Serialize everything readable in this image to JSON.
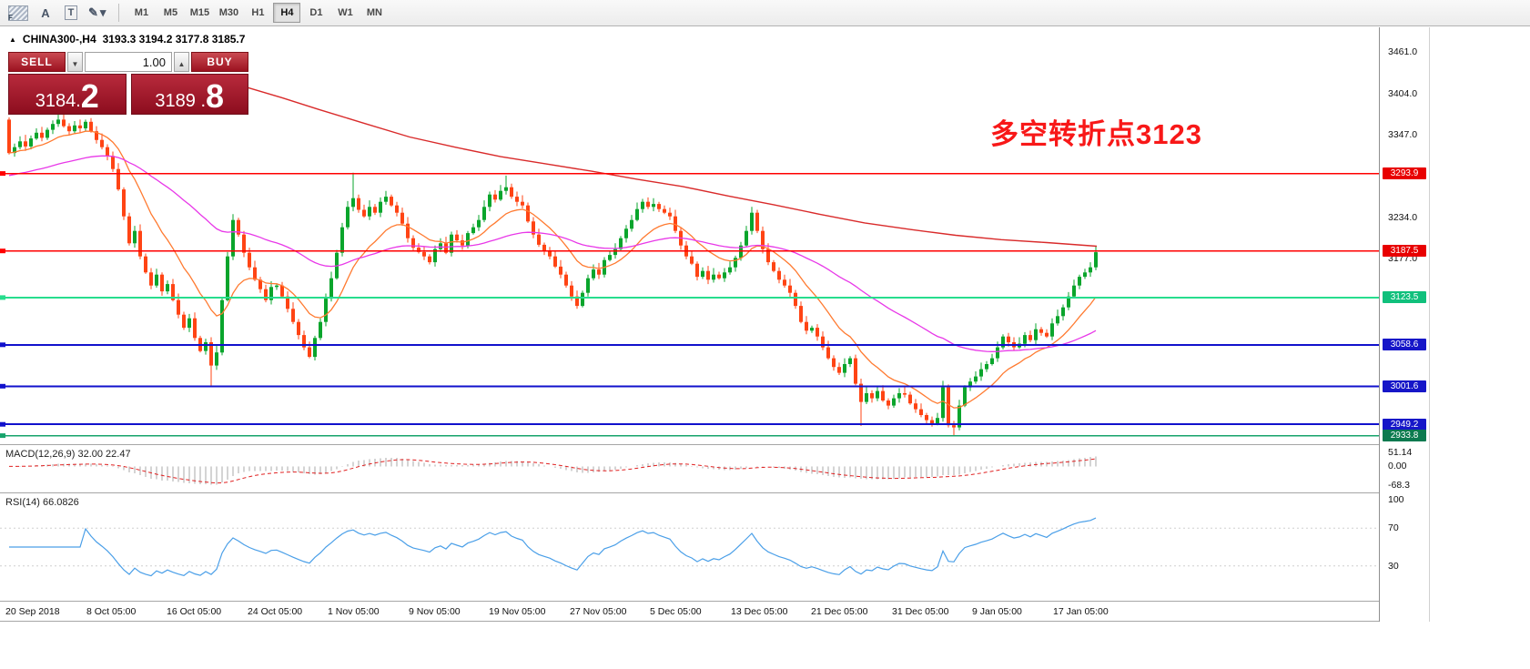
{
  "toolbar": {
    "icons": {
      "pattern_label": "F",
      "text_tool": "A",
      "label_tool": "T",
      "draw_tool": "✎",
      "dropdown": "▾"
    },
    "timeframes": [
      "M1",
      "M5",
      "M15",
      "M30",
      "H1",
      "H4",
      "D1",
      "W1",
      "MN"
    ],
    "active_timeframe": "H4"
  },
  "header": {
    "expand_marker": "▲",
    "symbol": "CHINA300-,H4",
    "ohlc_text": "3193.3 3194.2 3177.8 3185.7"
  },
  "trade_panel": {
    "sell_label": "SELL",
    "buy_label": "BUY",
    "volume": "1.00",
    "down_glyph": "▼",
    "up_glyph": "▲",
    "bid_prefix": "3184.",
    "bid_big": "2",
    "ask_prefix": "3189 .",
    "ask_big": "8"
  },
  "annotation": {
    "text": "多空转折点3123",
    "color": "#f81818"
  },
  "price_axis": {
    "ticks": [
      {
        "label": "3461.0",
        "price": 3461.0
      },
      {
        "label": "3404.0",
        "price": 3404.0
      },
      {
        "label": "3347.0",
        "price": 3347.0
      },
      {
        "label": "3234.0",
        "price": 3234.0
      },
      {
        "label": "3177.0",
        "price": 3177.0
      }
    ],
    "badges": [
      {
        "label": "3293.9",
        "price": 3293.9,
        "bg": "#e80000"
      },
      {
        "label": "3187.5",
        "price": 3187.5,
        "bg": "#e80000"
      },
      {
        "label": "3123.5",
        "price": 3123.5,
        "bg": "#10c07c"
      },
      {
        "label": "3058.6",
        "price": 3058.6,
        "bg": "#1616c8"
      },
      {
        "label": "3001.6",
        "price": 3001.6,
        "bg": "#1616c8"
      },
      {
        "label": "2949.2",
        "price": 2949.2,
        "bg": "#1616c8"
      },
      {
        "label": "2933.8",
        "price": 2933.8,
        "bg": "#0c7a4f"
      }
    ]
  },
  "chart_data": {
    "type": "candlestick",
    "symbol": "CHINA300-",
    "timeframe": "H4",
    "current_bar": {
      "open": 3193.3,
      "high": 3194.2,
      "low": 3177.8,
      "close": 3185.7
    },
    "price_top": 3491,
    "price_bottom": 2922,
    "first_open": 3368,
    "closes": [
      3322,
      3330,
      3338,
      3331,
      3342,
      3350,
      3343,
      3354,
      3362,
      3368,
      3359,
      3352,
      3360,
      3356,
      3365,
      3352,
      3340,
      3330,
      3318,
      3300,
      3272,
      3235,
      3198,
      3215,
      3180,
      3158,
      3140,
      3155,
      3132,
      3142,
      3120,
      3100,
      3082,
      3095,
      3068,
      3050,
      3062,
      3030,
      3048,
      3120,
      3180,
      3230,
      3210,
      3185,
      3165,
      3148,
      3135,
      3120,
      3138,
      3140,
      3125,
      3108,
      3090,
      3072,
      3055,
      3042,
      3068,
      3090,
      3122,
      3150,
      3185,
      3220,
      3248,
      3260,
      3244,
      3235,
      3248,
      3240,
      3255,
      3262,
      3250,
      3240,
      3225,
      3205,
      3192,
      3186,
      3180,
      3172,
      3190,
      3198,
      3185,
      3210,
      3202,
      3195,
      3212,
      3220,
      3230,
      3248,
      3265,
      3258,
      3270,
      3275,
      3262,
      3255,
      3250,
      3228,
      3210,
      3196,
      3188,
      3180,
      3166,
      3155,
      3140,
      3125,
      3112,
      3130,
      3150,
      3162,
      3155,
      3175,
      3182,
      3190,
      3205,
      3218,
      3230,
      3245,
      3255,
      3248,
      3252,
      3245,
      3240,
      3235,
      3215,
      3195,
      3180,
      3170,
      3152,
      3160,
      3148,
      3155,
      3150,
      3158,
      3165,
      3178,
      3195,
      3215,
      3240,
      3215,
      3190,
      3172,
      3160,
      3148,
      3140,
      3130,
      3112,
      3090,
      3078,
      3082,
      3070,
      3055,
      3040,
      3028,
      3020,
      3032,
      3040,
      3005,
      2980,
      2992,
      2985,
      2995,
      2982,
      2975,
      2985,
      2992,
      2990,
      2978,
      2970,
      2962,
      2955,
      2950,
      2958,
      3000,
      2948,
      2945,
      2975,
      3000,
      3008,
      3015,
      3025,
      3032,
      3040,
      3055,
      3070,
      3062,
      3055,
      3060,
      3072,
      3065,
      3080,
      3075,
      3070,
      3088,
      3098,
      3110,
      3125,
      3140,
      3152,
      3158,
      3165,
      3185.7
    ],
    "wick_highs": {
      "63": 3295,
      "91": 3291,
      "136": 3248,
      "199": 3194.2
    },
    "wick_lows": {
      "37": 3001,
      "156": 2947,
      "173": 2933.8
    },
    "bull_color": "#0aa52c",
    "bear_color": "#ff4414",
    "ma_fast_period": 13,
    "ma_fast_color": "#ff7a30",
    "ma_slow_period": 55,
    "ma_slow_seed": 3290,
    "ma_slow_color": "#e838e8",
    "ma_long_color": "#d92b2b",
    "ma_long_points": [
      [
        272,
        3412
      ],
      [
        310,
        3398
      ],
      [
        350,
        3382
      ],
      [
        400,
        3363
      ],
      [
        450,
        3344
      ],
      [
        500,
        3330
      ],
      [
        550,
        3317
      ],
      [
        600,
        3307
      ],
      [
        650,
        3297
      ],
      [
        700,
        3286
      ],
      [
        750,
        3276
      ],
      [
        800,
        3263
      ],
      [
        850,
        3251
      ],
      [
        900,
        3238
      ],
      [
        950,
        3226
      ],
      [
        1000,
        3217
      ],
      [
        1050,
        3209
      ],
      [
        1100,
        3203
      ],
      [
        1150,
        3199
      ],
      [
        1205,
        3194
      ]
    ],
    "hlines": [
      {
        "price": 3293.9,
        "color": "#ff0000",
        "width": 1.4
      },
      {
        "price": 3187.5,
        "color": "#ff0000",
        "width": 1.4
      },
      {
        "price": 3123.5,
        "color": "#27dd8d",
        "width": 1.8
      },
      {
        "price": 3058.6,
        "color": "#1111cc",
        "width": 2
      },
      {
        "price": 3001.6,
        "color": "#1111cc",
        "width": 2
      },
      {
        "price": 2949.2,
        "color": "#1111cc",
        "width": 2
      },
      {
        "price": 2933.8,
        "color": "#16a36b",
        "width": 1.6
      }
    ]
  },
  "macd": {
    "title": "MACD(12,26,9) 32.00 22.47",
    "params": [
      12,
      26,
      9
    ],
    "range": [
      -95,
      78
    ],
    "hist_color": "#a8a8a8",
    "signal_color": "#e02020",
    "axis_labels": [
      {
        "label": "51.14",
        "value": 51.14
      },
      {
        "label": "0.00",
        "value": 0
      },
      {
        "label": "-68.3",
        "value": -68.3
      }
    ]
  },
  "rsi": {
    "title": "RSI(14) 66.0826",
    "period": 14,
    "levels": [
      70,
      30
    ],
    "line_color": "#4a9fe8",
    "axis_labels": [
      {
        "label": "100",
        "value": 100
      },
      {
        "label": "70",
        "value": 70
      },
      {
        "label": "30",
        "value": 30
      }
    ]
  },
  "time_axis": {
    "labels": [
      "20 Sep 2018",
      "8 Oct 05:00",
      "16 Oct 05:00",
      "24 Oct 05:00",
      "1 Nov 05:00",
      "9 Nov 05:00",
      "19 Nov 05:00",
      "27 Nov 05:00",
      "5 Dec 05:00",
      "13 Dec 05:00",
      "21 Dec 05:00",
      "31 Dec 05:00",
      "9 Jan 05:00",
      "17 Jan 05:00"
    ]
  }
}
